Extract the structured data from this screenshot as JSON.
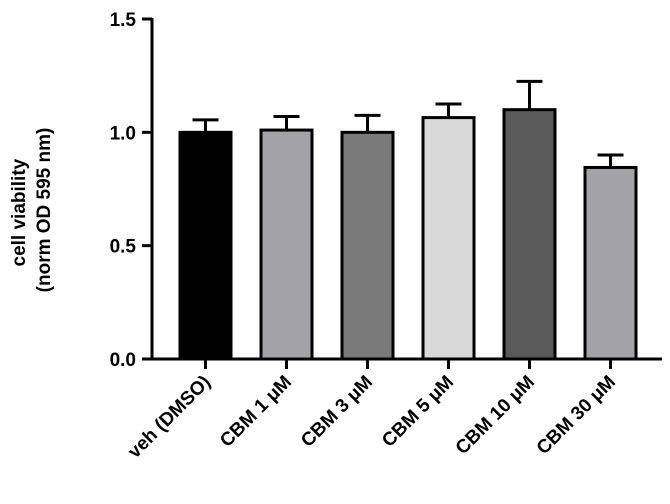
{
  "chart_data": {
    "type": "bar",
    "title": "",
    "xlabel": "",
    "ylabel_line1": "cell viability",
    "ylabel_line2": "(norm OD 595 nm)",
    "ylim": [
      0,
      1.5
    ],
    "yticks": [
      0.0,
      0.5,
      1.0,
      1.5
    ],
    "ytick_labels": [
      "0.0",
      "0.5",
      "1.0",
      "1.5"
    ],
    "grid": false,
    "legend": "none",
    "categories": [
      "veh (DMSO)",
      "CBM 1 μM",
      "CBM 3 μM",
      "CBM 5 μM",
      "CBM 10 μM",
      "CBM 30 μM"
    ],
    "values": [
      1.0,
      1.01,
      1.0,
      1.065,
      1.1,
      0.845
    ],
    "errors": [
      0.055,
      0.06,
      0.075,
      0.06,
      0.125,
      0.055
    ],
    "colors": [
      "#000000",
      "#a3a2a7",
      "#7a7a7a",
      "#d9d9d9",
      "#5a5a5a",
      "#a3a2a7"
    ]
  }
}
